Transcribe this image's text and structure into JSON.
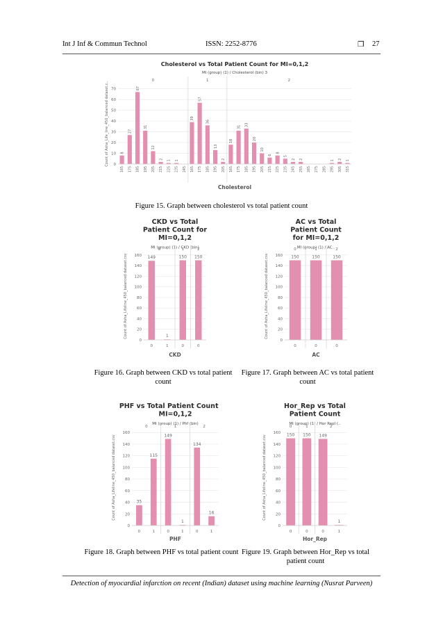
{
  "header": {
    "journal": "Int J Inf & Commun Technol",
    "issn": "ISSN: 2252-8776",
    "page_symbol": "❒",
    "page_number": "27"
  },
  "footer": {
    "text": "Detection of myocardial infarction on recent (Indian) dataset using machine learning (Nusrat Parveen)"
  },
  "colors": {
    "bar": "#e38fb0",
    "grid": "#e6e6e6",
    "divider": "#d8d8d8"
  },
  "captions": {
    "fig15": "Figure 15. Graph between cholesterol vs total patient count",
    "fig16": "Figure 16. Graph between CKD vs total patient count",
    "fig17": "Figure 17. Graph between AC vs total patient count",
    "fig18": "Figure 18. Graph between PHF vs total patient count",
    "fig19": "Figure 19. Graph between Hor_Rep vs total patient count"
  },
  "chart_data": [
    {
      "id": "fig15",
      "type": "bar",
      "title": "Cholesterol vs Total Patient Count for MI=0,1,2",
      "subtitle": "MI (group) (1) / Cholesterol (bin) 3",
      "ylabel": "Count of Asha_Life_line_450_balanced dataset.c..",
      "xlabel": "Cholesterol",
      "ylim": [
        0,
        75
      ],
      "yticks": [
        0,
        10,
        20,
        30,
        40,
        50,
        60,
        70
      ],
      "panels": [
        {
          "label": "0",
          "categories": [
            "165",
            "175",
            "185",
            "195",
            "205",
            "215",
            "225",
            "235",
            "245"
          ],
          "values": [
            8,
            27,
            67,
            31,
            12,
            2,
            1,
            1,
            null
          ]
        },
        {
          "label": "1",
          "categories": [
            "165",
            "175",
            "185",
            "195",
            "205"
          ],
          "values": [
            39,
            57,
            36,
            13,
            2
          ]
        },
        {
          "label": "2",
          "categories": [
            "165",
            "175",
            "185",
            "195",
            "205",
            "215",
            "225",
            "235",
            "245",
            "255",
            "265",
            "275",
            "285",
            "295",
            "305",
            "315"
          ],
          "values": [
            18,
            31,
            33,
            20,
            10,
            6,
            8,
            5,
            2,
            2,
            null,
            null,
            null,
            1,
            2,
            1
          ]
        }
      ]
    },
    {
      "id": "fig16",
      "type": "bar",
      "title": "CKD vs Total Patient Count for MI=0,1,2",
      "subtitle": "MI (group) (1) / CKD (bin)",
      "ylabel": "Count of Asha_Lifeline_450_balanced dataset.csv",
      "xlabel": "CKD",
      "ylim": [
        0,
        165
      ],
      "yticks": [
        0,
        20,
        40,
        60,
        80,
        100,
        120,
        140,
        160
      ],
      "panels": [
        {
          "label": "0",
          "categories": [
            "0",
            "1"
          ],
          "values": [
            149,
            1
          ]
        },
        {
          "label": "1",
          "categories": [
            "0"
          ],
          "values": [
            150
          ]
        },
        {
          "label": "2",
          "categories": [
            "0"
          ],
          "values": [
            150
          ]
        }
      ]
    },
    {
      "id": "fig17",
      "type": "bar",
      "title": "AC vs Total Patient Count for MI=0,1,2",
      "subtitle": "MI (group) (1) / AC..",
      "ylabel": "Count of Asha_Lifeline_450_balanced dataset.csv",
      "xlabel": "AC",
      "ylim": [
        0,
        165
      ],
      "yticks": [
        0,
        20,
        40,
        60,
        80,
        100,
        120,
        140,
        160
      ],
      "panels": [
        {
          "label": "0",
          "categories": [
            "0"
          ],
          "values": [
            150
          ]
        },
        {
          "label": "1",
          "categories": [
            "0"
          ],
          "values": [
            150
          ]
        },
        {
          "label": "2",
          "categories": [
            "0"
          ],
          "values": [
            150
          ]
        }
      ]
    },
    {
      "id": "fig18",
      "type": "bar",
      "title": "PHF vs Total Patient Count for MI=0,1,2",
      "subtitle": "MI (group) (1) / Phf (bin)",
      "ylabel": "Count of Asha_Lifeline_450_balanced dataset.csv",
      "xlabel": "PHF",
      "ylim": [
        0,
        165
      ],
      "yticks": [
        0,
        20,
        40,
        60,
        80,
        100,
        120,
        140,
        160
      ],
      "panels": [
        {
          "label": "0",
          "categories": [
            "0",
            "1"
          ],
          "values": [
            35,
            115
          ]
        },
        {
          "label": "1",
          "categories": [
            "0",
            "1"
          ],
          "values": [
            149,
            1
          ]
        },
        {
          "label": "2",
          "categories": [
            "0",
            "1"
          ],
          "values": [
            134,
            16
          ]
        }
      ]
    },
    {
      "id": "fig19",
      "type": "bar",
      "title": "Hor_Rep vs Total Patient Count",
      "subtitle": "MI (group) (1) / Hor Repl (..",
      "ylabel": "Count of Asha_Lifeline_450_balanced dataset.csv",
      "xlabel": "Hor_Rep",
      "ylim": [
        0,
        165
      ],
      "yticks": [
        0,
        20,
        40,
        60,
        80,
        100,
        120,
        140,
        160
      ],
      "panels": [
        {
          "label": "0",
          "categories": [
            "0"
          ],
          "values": [
            150
          ]
        },
        {
          "label": "1",
          "categories": [
            "0"
          ],
          "values": [
            150
          ]
        },
        {
          "label": "2",
          "categories": [
            "0",
            "1"
          ],
          "values": [
            149,
            1
          ]
        }
      ]
    }
  ]
}
